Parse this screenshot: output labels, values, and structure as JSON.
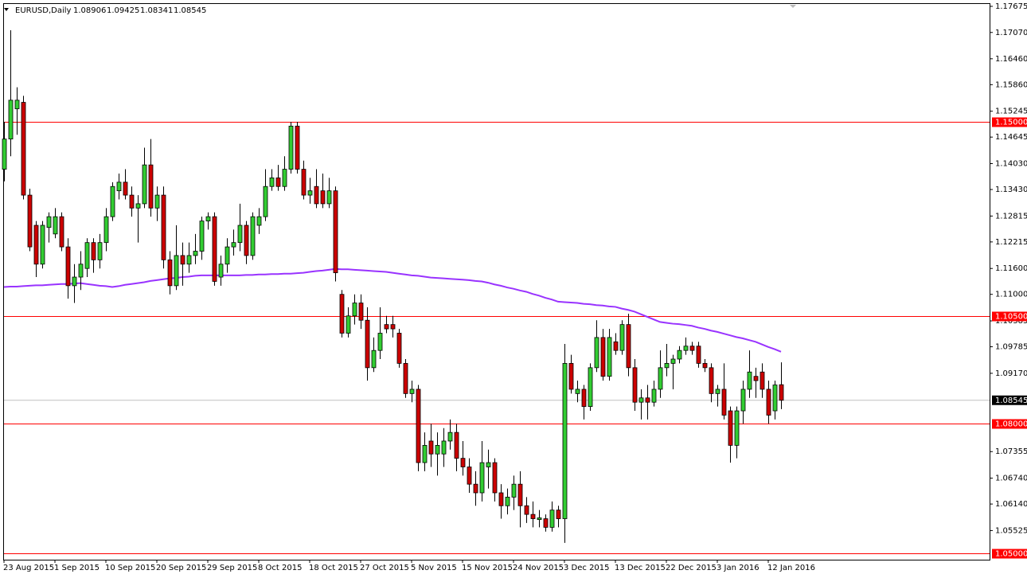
{
  "chart_data": {
    "type": "candlestick",
    "title": "EURUSD,Daily",
    "header_values": [
      "1.08906",
      "1.09425",
      "1.08341",
      "1.08545"
    ],
    "ylim": [
      1.0485,
      1.1773
    ],
    "yticks": [
      1.17675,
      {
        "value": 1.1707,
        "label": "1.17070"
      },
      {
        "value": 1.1646,
        "label": "1.16460"
      },
      {
        "value": 1.1586,
        "label": "1.15860"
      },
      1.15245,
      1.14645,
      {
        "value": 1.1403,
        "label": "1.14030"
      },
      {
        "value": 1.1343,
        "label": "1.13430"
      },
      1.12815,
      1.12215,
      {
        "value": 1.116,
        "label": "1.11600"
      },
      {
        "value": 1.11,
        "label": "1.11000"
      },
      1.10385,
      1.09785,
      {
        "value": 1.0917,
        "label": "1.09170"
      },
      1.07355,
      {
        "value": 1.0674,
        "label": "1.06740"
      },
      {
        "value": 1.0614,
        "label": "1.06140"
      },
      1.05525
    ],
    "hlines": [
      {
        "value": 1.15,
        "label": "1.15000"
      },
      {
        "value": 1.105,
        "label": "1.10500"
      },
      {
        "value": 1.08,
        "label": "1.08000"
      },
      {
        "value": 1.05,
        "label": "1.05000"
      }
    ],
    "hline_color": "#ff0000",
    "current_price": {
      "value": 1.08545,
      "label": "1.08545"
    },
    "up_color": "#32cd32",
    "down_color": "#cc0000",
    "categories": [
      "23 Aug 2015",
      null,
      null,
      null,
      null,
      null,
      null,
      null,
      "1 Sep 2015",
      null,
      null,
      null,
      null,
      null,
      null,
      null,
      "10 Sep 2015",
      null,
      null,
      null,
      null,
      null,
      null,
      null,
      "20 Sep 2015",
      null,
      null,
      null,
      null,
      null,
      null,
      null,
      "29 Sep 2015",
      null,
      null,
      null,
      null,
      null,
      null,
      null,
      "8 Oct 2015",
      null,
      null,
      null,
      null,
      null,
      null,
      null,
      "18 Oct 2015",
      null,
      null,
      null,
      null,
      null,
      null,
      null,
      "27 Oct 2015",
      null,
      null,
      null,
      null,
      null,
      null,
      null,
      "5 Nov 2015",
      null,
      null,
      null,
      null,
      null,
      null,
      null,
      "15 Nov 2015",
      null,
      null,
      null,
      null,
      null,
      null,
      null,
      "24 Nov 2015",
      null,
      null,
      null,
      null,
      null,
      null,
      null,
      "3 Dec 2015",
      null,
      null,
      null,
      null,
      null,
      null,
      null,
      "13 Dec 2015",
      null,
      null,
      null,
      null,
      null,
      null,
      null,
      "22 Dec 2015",
      null,
      null,
      null,
      null,
      null,
      null,
      null,
      "3 Jan 2016",
      null,
      null,
      null,
      null,
      null,
      null,
      null,
      "12 Jan 2016",
      null,
      null
    ],
    "ohlc": [
      [
        1.139,
        1.15,
        1.1362,
        1.146
      ],
      [
        1.146,
        1.1712,
        1.142,
        1.155
      ],
      [
        1.153,
        1.158,
        1.147,
        1.155
      ],
      [
        1.1545,
        1.156,
        1.132,
        1.133
      ],
      [
        1.133,
        1.1345,
        1.12,
        1.121
      ],
      [
        1.126,
        1.127,
        1.114,
        1.117
      ],
      [
        1.117,
        1.127,
        1.116,
        1.126
      ],
      [
        1.1255,
        1.129,
        1.122,
        1.128
      ],
      [
        1.124,
        1.13,
        1.123,
        1.128
      ],
      [
        1.128,
        1.129,
        1.12,
        1.121
      ],
      [
        1.121,
        1.123,
        1.109,
        1.112
      ],
      [
        1.112,
        1.117,
        1.108,
        1.114
      ],
      [
        1.114,
        1.12,
        1.111,
        1.117
      ],
      [
        1.116,
        1.123,
        1.114,
        1.122
      ],
      [
        1.122,
        1.123,
        1.115,
        1.118
      ],
      [
        1.118,
        1.124,
        1.116,
        1.122
      ],
      [
        1.122,
        1.13,
        1.12,
        1.128
      ],
      [
        1.128,
        1.136,
        1.127,
        1.135
      ],
      [
        1.134,
        1.138,
        1.132,
        1.136
      ],
      [
        1.136,
        1.139,
        1.132,
        1.133
      ],
      [
        1.133,
        1.135,
        1.128,
        1.13
      ],
      [
        1.13,
        1.133,
        1.122,
        1.131
      ],
      [
        1.131,
        1.144,
        1.13,
        1.14
      ],
      [
        1.14,
        1.146,
        1.128,
        1.13
      ],
      [
        1.13,
        1.135,
        1.127,
        1.133
      ],
      [
        1.133,
        1.135,
        1.116,
        1.118
      ],
      [
        1.118,
        1.12,
        1.11,
        1.112
      ],
      [
        1.112,
        1.126,
        1.111,
        1.119
      ],
      [
        1.119,
        1.122,
        1.112,
        1.117
      ],
      [
        1.117,
        1.122,
        1.115,
        1.119
      ],
      [
        1.119,
        1.124,
        1.117,
        1.12
      ],
      [
        1.12,
        1.128,
        1.118,
        1.127
      ],
      [
        1.127,
        1.129,
        1.125,
        1.128
      ],
      [
        1.128,
        1.129,
        1.112,
        1.113
      ],
      [
        1.114,
        1.119,
        1.112,
        1.117
      ],
      [
        1.117,
        1.123,
        1.115,
        1.121
      ],
      [
        1.121,
        1.125,
        1.119,
        1.122
      ],
      [
        1.122,
        1.131,
        1.12,
        1.126
      ],
      [
        1.126,
        1.127,
        1.117,
        1.119
      ],
      [
        1.119,
        1.129,
        1.118,
        1.128
      ],
      [
        1.126,
        1.13,
        1.124,
        1.128
      ],
      [
        1.128,
        1.139,
        1.127,
        1.135
      ],
      [
        1.135,
        1.139,
        1.134,
        1.137
      ],
      [
        1.137,
        1.14,
        1.134,
        1.135
      ],
      [
        1.135,
        1.142,
        1.134,
        1.139
      ],
      [
        1.139,
        1.15,
        1.138,
        1.149
      ],
      [
        1.149,
        1.15,
        1.138,
        1.139
      ],
      [
        1.139,
        1.141,
        1.132,
        1.133
      ],
      [
        1.133,
        1.137,
        1.131,
        1.134
      ],
      [
        1.135,
        1.139,
        1.13,
        1.131
      ],
      [
        1.134,
        1.138,
        1.13,
        1.131
      ],
      [
        1.131,
        1.137,
        1.13,
        1.134
      ],
      [
        1.134,
        1.135,
        1.113,
        1.115
      ],
      [
        1.11,
        1.111,
        1.1,
        1.101
      ],
      [
        1.101,
        1.107,
        1.1,
        1.105
      ],
      [
        1.105,
        1.11,
        1.103,
        1.108
      ],
      [
        1.108,
        1.11,
        1.102,
        1.104
      ],
      [
        1.104,
        1.107,
        1.09,
        1.093
      ],
      [
        1.093,
        1.1,
        1.092,
        1.097
      ],
      [
        1.097,
        1.107,
        1.095,
        1.101
      ],
      [
        1.103,
        1.105,
        1.101,
        1.102
      ],
      [
        1.103,
        1.105,
        1.1,
        1.102
      ],
      [
        1.101,
        1.102,
        1.093,
        1.094
      ],
      [
        1.094,
        1.095,
        1.086,
        1.087
      ],
      [
        1.087,
        1.09,
        1.085,
        1.088
      ],
      [
        1.088,
        1.089,
        1.069,
        1.071
      ],
      [
        1.071,
        1.078,
        1.069,
        1.075
      ],
      [
        1.076,
        1.08,
        1.07,
        1.073
      ],
      [
        1.073,
        1.078,
        1.068,
        1.075
      ],
      [
        1.073,
        1.079,
        1.07,
        1.076
      ],
      [
        1.076,
        1.081,
        1.074,
        1.078
      ],
      [
        1.078,
        1.08,
        1.069,
        1.072
      ],
      [
        1.072,
        1.076,
        1.068,
        1.07
      ],
      [
        1.07,
        1.072,
        1.064,
        1.066
      ],
      [
        1.066,
        1.069,
        1.061,
        1.064
      ],
      [
        1.064,
        1.076,
        1.062,
        1.071
      ],
      [
        1.07,
        1.074,
        1.065,
        1.071
      ],
      [
        1.071,
        1.072,
        1.062,
        1.064
      ],
      [
        1.064,
        1.066,
        1.058,
        1.061
      ],
      [
        1.061,
        1.065,
        1.059,
        1.063
      ],
      [
        1.063,
        1.068,
        1.06,
        1.066
      ],
      [
        1.066,
        1.069,
        1.056,
        1.061
      ],
      [
        1.061,
        1.063,
        1.057,
        1.059
      ],
      [
        1.059,
        1.062,
        1.056,
        1.058
      ],
      [
        1.0578,
        1.06,
        1.056,
        1.0582
      ],
      [
        1.058,
        1.059,
        1.055,
        1.056
      ],
      [
        1.056,
        1.062,
        1.055,
        1.06
      ],
      [
        1.06,
        1.061,
        1.056,
        1.058
      ],
      [
        1.058,
        1.0985,
        1.0524,
        1.094
      ],
      [
        1.094,
        1.096,
        1.087,
        1.088
      ],
      [
        1.087,
        1.09,
        1.085,
        1.088
      ],
      [
        1.088,
        1.089,
        1.081,
        1.084
      ],
      [
        1.084,
        1.094,
        1.083,
        1.093
      ],
      [
        1.093,
        1.104,
        1.092,
        1.1
      ],
      [
        1.1,
        1.102,
        1.09,
        1.091
      ],
      [
        1.091,
        1.102,
        1.09,
        1.1
      ],
      [
        1.099,
        1.101,
        1.096,
        1.097
      ],
      [
        1.097,
        1.104,
        1.096,
        1.103
      ],
      [
        1.103,
        1.1055,
        1.091,
        1.093
      ],
      [
        1.093,
        1.095,
        1.083,
        1.085
      ],
      [
        1.085,
        1.088,
        1.081,
        1.086
      ],
      [
        1.086,
        1.089,
        1.081,
        1.085
      ],
      [
        1.085,
        1.09,
        1.084,
        1.088
      ],
      [
        1.088,
        1.097,
        1.086,
        1.093
      ],
      [
        1.093,
        1.0985,
        1.091,
        1.094
      ],
      [
        1.094,
        1.096,
        1.088,
        1.095
      ],
      [
        1.095,
        1.098,
        1.094,
        1.097
      ],
      [
        1.097,
        1.1,
        1.096,
        1.098
      ],
      [
        1.098,
        1.099,
        1.096,
        1.097
      ],
      [
        1.098,
        1.099,
        1.093,
        1.094
      ],
      [
        1.094,
        1.095,
        1.092,
        1.093
      ],
      [
        1.093,
        1.094,
        1.085,
        1.087
      ],
      [
        1.087,
        1.089,
        1.084,
        1.088
      ],
      [
        1.088,
        1.094,
        1.081,
        1.082
      ],
      [
        1.083,
        1.084,
        1.071,
        1.075
      ],
      [
        1.075,
        1.084,
        1.072,
        1.083
      ],
      [
        1.083,
        1.09,
        1.08,
        1.088
      ],
      [
        1.088,
        1.097,
        1.086,
        1.092
      ],
      [
        1.091,
        1.093,
        1.086,
        1.09
      ],
      [
        1.092,
        1.094,
        1.086,
        1.088
      ],
      [
        1.088,
        1.09,
        1.08,
        1.082
      ],
      [
        1.083,
        1.09,
        1.081,
        1.089
      ],
      [
        1.08906,
        1.09425,
        1.08341,
        1.08545
      ]
    ],
    "ma_color": "#9933ff",
    "ma_values": [
      1.1117,
      1.1118,
      1.1118,
      1.1119,
      1.112,
      1.1121,
      1.1121,
      1.1122,
      1.1123,
      1.1124,
      1.1124,
      1.1125,
      1.1126,
      1.1124,
      1.1122,
      1.112,
      1.1119,
      1.1117,
      1.1119,
      1.1122,
      1.1124,
      1.1126,
      1.1128,
      1.1131,
      1.1133,
      1.1135,
      1.1137,
      1.1138,
      1.114,
      1.1141,
      1.1143,
      1.1144,
      1.1144,
      1.1144,
      1.1144,
      1.1144,
      1.1144,
      1.1144,
      1.1145,
      1.1145,
      1.1146,
      1.1146,
      1.1147,
      1.1147,
      1.1148,
      1.1148,
      1.1149,
      1.115,
      1.1152,
      1.1154,
      1.1155,
      1.1157,
      1.1159,
      1.1158,
      1.1158,
      1.1157,
      1.1156,
      1.1155,
      1.1154,
      1.1153,
      1.1152,
      1.115,
      1.1148,
      1.1146,
      1.1144,
      1.1143,
      1.1141,
      1.1139,
      1.1138,
      1.1137,
      1.1136,
      1.1135,
      1.1134,
      1.1133,
      1.1131,
      1.113,
      1.1127,
      1.1123,
      1.112,
      1.1116,
      1.1113,
      1.1109,
      1.1106,
      1.1101,
      1.1097,
      1.1092,
      1.1088,
      1.1083,
      1.1082,
      1.1081,
      1.108,
      1.1078,
      1.1077,
      1.1075,
      1.1074,
      1.1072,
      1.1071,
      1.1067,
      1.1064,
      1.106,
      1.1054,
      1.1048,
      1.1042,
      1.1036,
      1.1034,
      1.1032,
      1.1031,
      1.1029,
      1.1027,
      1.1023,
      1.102,
      1.1016,
      1.1013,
      1.1009,
      1.1005,
      1.1001,
      1.0998,
      1.0994,
      1.099,
      1.0984,
      1.0978,
      1.0973,
      1.0967
    ]
  }
}
